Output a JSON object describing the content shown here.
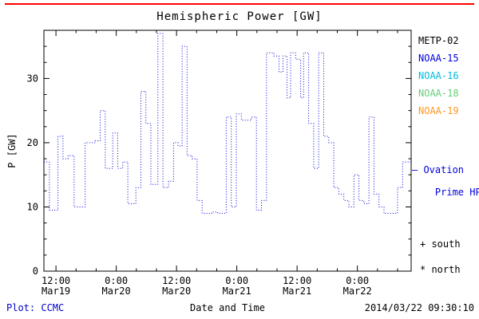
{
  "chart_data": {
    "type": "line",
    "step": true,
    "title": "Hemispheric Power [GW]",
    "xlabel": "Date and Time",
    "ylabel": "P [GW]",
    "xlim_hours": [
      9.6,
      82.7
    ],
    "ylim": [
      0,
      37.5
    ],
    "x_ticks": [
      {
        "t": 12,
        "time": "12:00",
        "date": "Mar19"
      },
      {
        "t": 24,
        "time": "0:00",
        "date": "Mar20"
      },
      {
        "t": 36,
        "time": "12:00",
        "date": "Mar20"
      },
      {
        "t": 48,
        "time": "0:00",
        "date": "Mar21"
      },
      {
        "t": 60,
        "time": "12:00",
        "date": "Mar21"
      },
      {
        "t": 72,
        "time": "0:00",
        "date": "Mar22"
      }
    ],
    "y_ticks": [
      0,
      10,
      20,
      30
    ],
    "line_color": "#0000dd",
    "grid": false,
    "series": [
      {
        "name": "Ovation Prime HPI",
        "points": [
          [
            9.6,
            17
          ],
          [
            10.7,
            9.5
          ],
          [
            12.4,
            21
          ],
          [
            13.4,
            17.5
          ],
          [
            14.4,
            18
          ],
          [
            15.6,
            10
          ],
          [
            17.8,
            20
          ],
          [
            19.8,
            20.3
          ],
          [
            20.8,
            25
          ],
          [
            21.8,
            16
          ],
          [
            23.3,
            21.5
          ],
          [
            24.3,
            16
          ],
          [
            25.3,
            17
          ],
          [
            26.3,
            10.5
          ],
          [
            27.9,
            13
          ],
          [
            28.9,
            28
          ],
          [
            29.9,
            23
          ],
          [
            30.9,
            13.5
          ],
          [
            32.3,
            37
          ],
          [
            33.3,
            13
          ],
          [
            34.4,
            14
          ],
          [
            35.4,
            20
          ],
          [
            36.3,
            19.5
          ],
          [
            37.1,
            35
          ],
          [
            38.1,
            18
          ],
          [
            39.1,
            17.5
          ],
          [
            40.1,
            11
          ],
          [
            41.1,
            9
          ],
          [
            43.0,
            9.2
          ],
          [
            44.2,
            9
          ],
          [
            45.9,
            24
          ],
          [
            46.9,
            10
          ],
          [
            47.9,
            24.5
          ],
          [
            48.9,
            23.5
          ],
          [
            50.9,
            24
          ],
          [
            51.9,
            9.5
          ],
          [
            52.9,
            11
          ],
          [
            53.9,
            34
          ],
          [
            55.4,
            33.5
          ],
          [
            56.4,
            31
          ],
          [
            57.2,
            33.5
          ],
          [
            58.0,
            27
          ],
          [
            58.7,
            34
          ],
          [
            59.7,
            33
          ],
          [
            60.7,
            27
          ],
          [
            61.3,
            34
          ],
          [
            62.3,
            23
          ],
          [
            63.3,
            16
          ],
          [
            64.3,
            34
          ],
          [
            65.3,
            21
          ],
          [
            66.3,
            20
          ],
          [
            67.3,
            13
          ],
          [
            68.3,
            12
          ],
          [
            69.3,
            11
          ],
          [
            70.3,
            10
          ],
          [
            71.3,
            15
          ],
          [
            72.3,
            11
          ],
          [
            73.3,
            10.5
          ],
          [
            74.3,
            24
          ],
          [
            75.3,
            12
          ],
          [
            76.3,
            10
          ],
          [
            77.3,
            9
          ],
          [
            80.0,
            13
          ],
          [
            81.0,
            17
          ]
        ]
      }
    ]
  },
  "legend": {
    "entries": [
      {
        "label": "METP-02",
        "color": "#000000"
      },
      {
        "label": "NOAA-15",
        "color": "#0000dd"
      },
      {
        "label": "NOAA-16",
        "color": "#00bbdd"
      },
      {
        "label": "NOAA-18",
        "color": "#66cc77"
      },
      {
        "label": "NOAA-19",
        "color": "#ff9922"
      }
    ],
    "ovation_line1": "– Ovation",
    "ovation_line2": "Prime HPI",
    "south": "+ south",
    "north": "* north"
  },
  "footer": {
    "plot_credit": "Plot: CCMC",
    "timestamp": "2014/03/22 09:30:10"
  },
  "colors": {
    "top_line": "#ff0000",
    "ovation_text": "#0000dd",
    "plot_credit_text": "#0000cc",
    "axis": "#000000"
  }
}
